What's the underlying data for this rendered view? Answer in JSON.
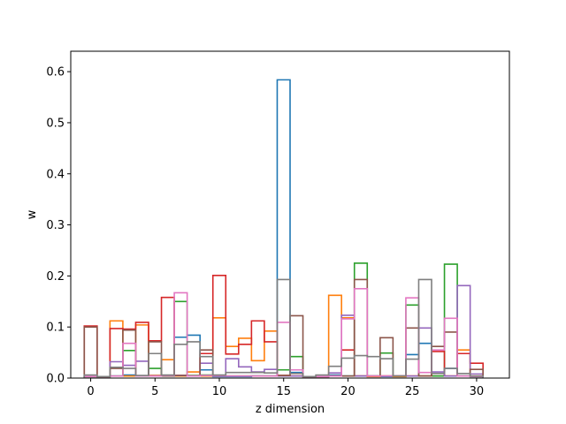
{
  "chart_data": {
    "type": "step-histogram",
    "title": "",
    "xlabel": "z dimension",
    "ylabel": "w",
    "xlim": [
      -1.55,
      32.55
    ],
    "ylim": [
      0,
      0.64
    ],
    "xticks": [
      0,
      5,
      10,
      15,
      20,
      25,
      30
    ],
    "yticks": [
      0.0,
      0.1,
      0.2,
      0.3,
      0.4,
      0.5,
      0.6
    ],
    "ytick_labels": [
      "0.0",
      "0.1",
      "0.2",
      "0.3",
      "0.4",
      "0.5",
      "0.6"
    ],
    "grid": false,
    "legend": "none",
    "series": [
      {
        "color": "#1f77b4",
        "values": [
          0.003,
          0.003,
          0.004,
          0.006,
          0.004,
          0.005,
          0.004,
          0.08,
          0.084,
          0.016,
          0.003,
          0.003,
          0.003,
          0.004,
          0.004,
          0.584,
          0.011,
          0.003,
          0.003,
          0.006,
          0.004,
          0.004,
          0.003,
          0.003,
          0.003,
          0.046,
          0.068,
          0.004,
          0.019,
          0.004,
          0.003
        ]
      },
      {
        "color": "#ff7f0e",
        "values": [
          0.003,
          0.003,
          0.112,
          0.004,
          0.104,
          0.005,
          0.036,
          0.004,
          0.012,
          0.004,
          0.118,
          0.062,
          0.078,
          0.034,
          0.092,
          0.005,
          0.004,
          0.003,
          0.003,
          0.162,
          0.118,
          0.004,
          0.003,
          0.004,
          0.003,
          0.004,
          0.004,
          0.004,
          0.004,
          0.055,
          0.004
        ]
      },
      {
        "color": "#2ca02c",
        "values": [
          0.003,
          0.003,
          0.004,
          0.054,
          0.004,
          0.019,
          0.004,
          0.15,
          0.005,
          0.006,
          0.004,
          0.004,
          0.004,
          0.004,
          0.004,
          0.016,
          0.042,
          0.003,
          0.003,
          0.004,
          0.004,
          0.225,
          0.004,
          0.049,
          0.004,
          0.143,
          0.004,
          0.004,
          0.223,
          0.004,
          0.003
        ]
      },
      {
        "color": "#d62728",
        "values": [
          0.102,
          0.003,
          0.097,
          0.096,
          0.109,
          0.073,
          0.158,
          0.005,
          0.004,
          0.048,
          0.201,
          0.047,
          0.066,
          0.112,
          0.071,
          0.005,
          0.004,
          0.003,
          0.003,
          0.004,
          0.055,
          0.004,
          0.004,
          0.004,
          0.004,
          0.004,
          0.004,
          0.052,
          0.004,
          0.048,
          0.029
        ]
      },
      {
        "color": "#9467bd",
        "values": [
          0.003,
          0.003,
          0.032,
          0.025,
          0.033,
          0.004,
          0.004,
          0.005,
          0.004,
          0.029,
          0.004,
          0.038,
          0.022,
          0.012,
          0.017,
          0.004,
          0.004,
          0.003,
          0.003,
          0.01,
          0.123,
          0.004,
          0.004,
          0.004,
          0.004,
          0.004,
          0.098,
          0.012,
          0.004,
          0.181,
          0.008
        ]
      },
      {
        "color": "#8c564b",
        "values": [
          0.1,
          0.003,
          0.019,
          0.094,
          0.004,
          0.071,
          0.004,
          0.005,
          0.004,
          0.055,
          0.004,
          0.004,
          0.004,
          0.004,
          0.004,
          0.005,
          0.122,
          0.003,
          0.003,
          0.004,
          0.004,
          0.193,
          0.004,
          0.079,
          0.004,
          0.098,
          0.004,
          0.062,
          0.09,
          0.004,
          0.017
        ]
      },
      {
        "color": "#e377c2",
        "values": [
          0.003,
          0.003,
          0.004,
          0.068,
          0.004,
          0.004,
          0.005,
          0.167,
          0.004,
          0.005,
          0.004,
          0.004,
          0.004,
          0.004,
          0.004,
          0.109,
          0.016,
          0.003,
          0.003,
          0.004,
          0.116,
          0.175,
          0.004,
          0.004,
          0.004,
          0.157,
          0.011,
          0.055,
          0.117,
          0.004,
          0.003
        ]
      },
      {
        "color": "#7f7f7f",
        "values": [
          0.006,
          0.003,
          0.021,
          0.019,
          0.005,
          0.048,
          0.006,
          0.066,
          0.071,
          0.042,
          0.006,
          0.011,
          0.011,
          0.011,
          0.01,
          0.193,
          0.009,
          0.003,
          0.006,
          0.023,
          0.039,
          0.044,
          0.042,
          0.038,
          0.004,
          0.037,
          0.193,
          0.009,
          0.019,
          0.009,
          0.004
        ]
      }
    ]
  }
}
